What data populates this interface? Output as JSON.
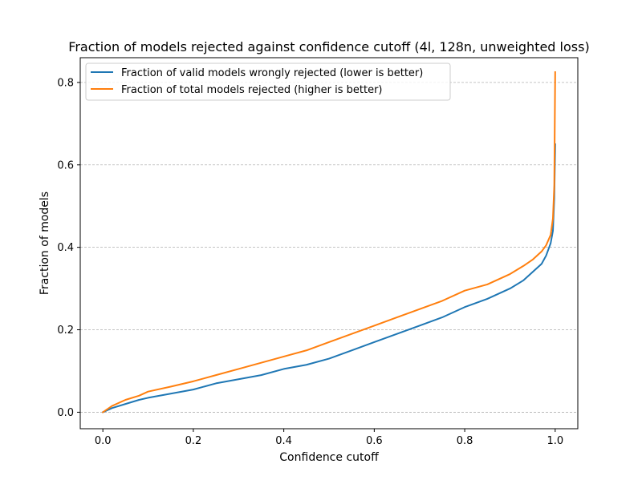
{
  "chart_data": {
    "type": "line",
    "title": "Fraction of models rejected against confidence cutoff (4l, 128n, unweighted loss)",
    "xlabel": "Confidence cutoff",
    "ylabel": "Fraction of models",
    "xlim": [
      -0.05,
      1.05
    ],
    "ylim": [
      -0.04,
      0.86
    ],
    "x_ticks": [
      "0.0",
      "0.2",
      "0.4",
      "0.6",
      "0.8",
      "1.0"
    ],
    "y_ticks": [
      "0.0",
      "0.2",
      "0.4",
      "0.6",
      "0.8"
    ],
    "grid": "horizontal dashed",
    "legend_position": "top-left",
    "series": [
      {
        "name": "Fraction of valid models wrongly rejected (lower is better)",
        "color": "#1f77b4",
        "x": [
          0,
          0.02,
          0.05,
          0.08,
          0.1,
          0.15,
          0.2,
          0.25,
          0.3,
          0.35,
          0.4,
          0.45,
          0.5,
          0.55,
          0.6,
          0.65,
          0.7,
          0.75,
          0.8,
          0.85,
          0.9,
          0.93,
          0.95,
          0.97,
          0.98,
          0.99,
          0.995,
          0.998,
          1.0
        ],
        "y": [
          0,
          0.01,
          0.02,
          0.03,
          0.035,
          0.045,
          0.055,
          0.07,
          0.08,
          0.09,
          0.105,
          0.115,
          0.13,
          0.15,
          0.17,
          0.19,
          0.21,
          0.23,
          0.255,
          0.275,
          0.3,
          0.32,
          0.34,
          0.36,
          0.38,
          0.41,
          0.44,
          0.52,
          0.65
        ]
      },
      {
        "name": "Fraction of total models rejected (higher is better)",
        "color": "#ff7f0e",
        "x": [
          0,
          0.02,
          0.05,
          0.08,
          0.1,
          0.15,
          0.2,
          0.25,
          0.3,
          0.35,
          0.4,
          0.45,
          0.5,
          0.55,
          0.6,
          0.65,
          0.7,
          0.75,
          0.8,
          0.85,
          0.9,
          0.93,
          0.95,
          0.97,
          0.98,
          0.99,
          0.995,
          0.998,
          1.0
        ],
        "y": [
          0,
          0.015,
          0.03,
          0.04,
          0.05,
          0.062,
          0.075,
          0.09,
          0.105,
          0.12,
          0.135,
          0.15,
          0.17,
          0.19,
          0.21,
          0.23,
          0.25,
          0.27,
          0.295,
          0.31,
          0.335,
          0.355,
          0.37,
          0.39,
          0.405,
          0.43,
          0.47,
          0.55,
          0.825
        ]
      }
    ]
  }
}
